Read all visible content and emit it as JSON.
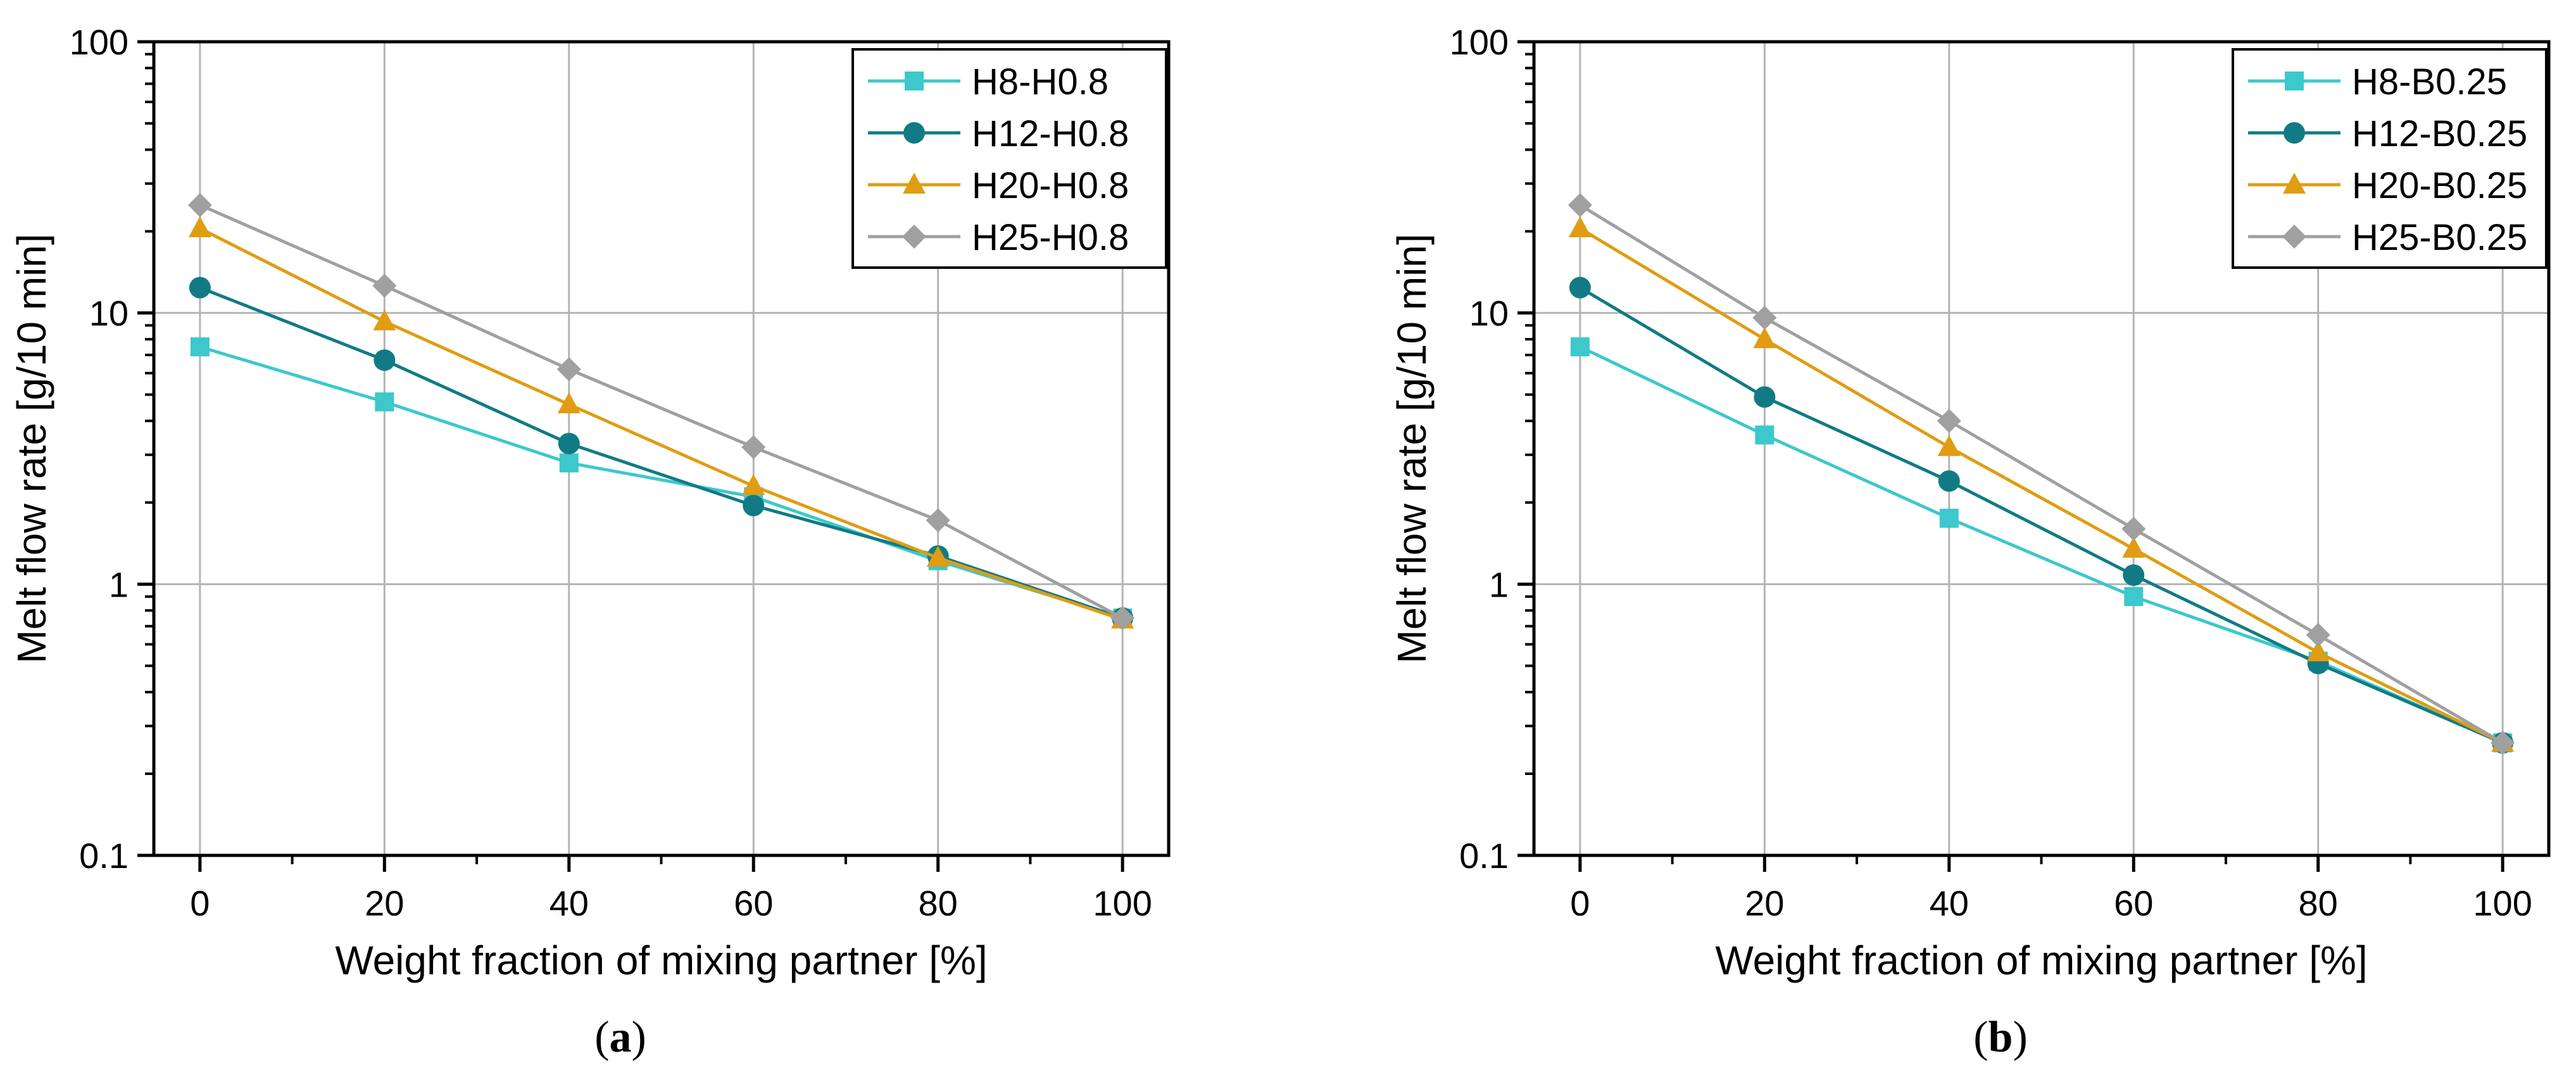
{
  "chart_data": [
    {
      "type": "line",
      "yscale": "log",
      "x": [
        0,
        20,
        40,
        60,
        80,
        100
      ],
      "xlim": [
        -5,
        105
      ],
      "ylim": [
        0.1,
        100
      ],
      "xticks": [
        "0",
        "20",
        "40",
        "60",
        "80",
        "100"
      ],
      "yticks": [
        "0.1",
        "1",
        "10",
        "100"
      ],
      "xlabel": "Weight fraction of mixing partner [%]",
      "ylabel": "Melt flow rate [g/10 min]",
      "grid": true,
      "legend_position": "top-right",
      "caption_letter": "a",
      "series": [
        {
          "name": "H8-H0.8",
          "marker": "square",
          "color": "#3cc8cc",
          "values": [
            7.5,
            4.7,
            2.8,
            2.1,
            1.22,
            0.75
          ]
        },
        {
          "name": "H12-H0.8",
          "marker": "circle",
          "color": "#117b85",
          "values": [
            12.4,
            6.7,
            3.3,
            1.95,
            1.27,
            0.75
          ]
        },
        {
          "name": "H20-H0.8",
          "marker": "triangle",
          "color": "#e09c12",
          "values": [
            20.5,
            9.3,
            4.6,
            2.3,
            1.25,
            0.74
          ]
        },
        {
          "name": "H25-H0.8",
          "marker": "diamond",
          "color": "#a0a0a0",
          "values": [
            25,
            12.6,
            6.2,
            3.2,
            1.72,
            0.75
          ]
        }
      ]
    },
    {
      "type": "line",
      "yscale": "log",
      "x": [
        0,
        20,
        40,
        60,
        80,
        100
      ],
      "xlim": [
        -5,
        105
      ],
      "ylim": [
        0.1,
        100
      ],
      "xticks": [
        "0",
        "20",
        "40",
        "60",
        "80",
        "100"
      ],
      "yticks": [
        "0.1",
        "1",
        "10",
        "100"
      ],
      "xlabel": "Weight fraction of mixing partner [%]",
      "ylabel": "Melt flow rate [g/10 min]",
      "grid": true,
      "legend_position": "top-right",
      "caption_letter": "b",
      "series": [
        {
          "name": "H8-B0.25",
          "marker": "square",
          "color": "#3cc8cc",
          "values": [
            7.5,
            3.55,
            1.75,
            0.9,
            0.52,
            0.26
          ]
        },
        {
          "name": "H12-B0.25",
          "marker": "circle",
          "color": "#117b85",
          "values": [
            12.4,
            4.9,
            2.4,
            1.08,
            0.51,
            0.26
          ]
        },
        {
          "name": "H20-B0.25",
          "marker": "triangle",
          "color": "#e09c12",
          "values": [
            20.5,
            8.0,
            3.2,
            1.35,
            0.56,
            0.26
          ]
        },
        {
          "name": "H25-B0.25",
          "marker": "diamond",
          "color": "#a0a0a0",
          "values": [
            25,
            9.6,
            4.0,
            1.6,
            0.65,
            0.26
          ]
        }
      ]
    }
  ]
}
